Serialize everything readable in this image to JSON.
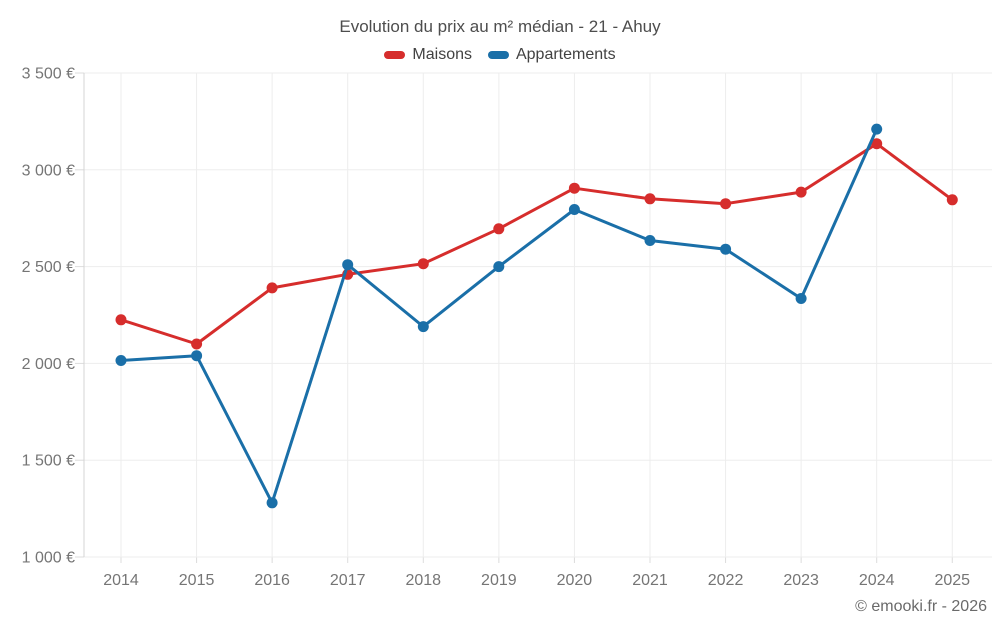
{
  "page": {
    "footer_credit": "© emooki.fr - 2026"
  },
  "chart_data": {
    "type": "line",
    "title": "Evolution du prix au m² médian - 21 - Ahuy",
    "x_labels": [
      "2014",
      "2015",
      "2016",
      "2017",
      "2018",
      "2019",
      "2020",
      "2021",
      "2022",
      "2023",
      "2024",
      "2025"
    ],
    "series": [
      {
        "name": "Maisons",
        "color": "#d62d2c",
        "values": [
          2225,
          2100,
          2390,
          2460,
          2515,
          2695,
          2905,
          2850,
          2825,
          2885,
          3135,
          2845
        ]
      },
      {
        "name": "Appartements",
        "color": "#1a6fa8",
        "values": [
          2015,
          2040,
          1280,
          2510,
          2190,
          2500,
          2795,
          2635,
          2590,
          2335,
          3210,
          null
        ]
      }
    ],
    "ylim": [
      1000,
      3500
    ],
    "y_ticks": [
      {
        "value": 1000,
        "label": "1 000 €"
      },
      {
        "value": 1500,
        "label": "1 500 €"
      },
      {
        "value": 2000,
        "label": "2 000 €"
      },
      {
        "value": 2500,
        "label": "2 500 €"
      },
      {
        "value": 3000,
        "label": "3 000 €"
      },
      {
        "value": 3500,
        "label": "3 500 €"
      }
    ],
    "grid": true,
    "legend_position": "top"
  }
}
